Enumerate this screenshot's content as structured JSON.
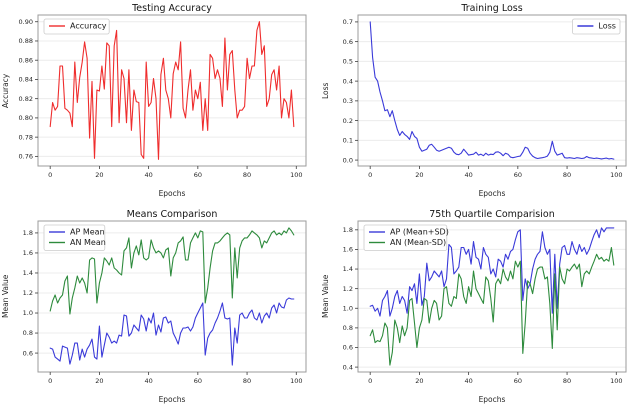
{
  "page": {
    "background": "#ffffff"
  },
  "colors": {
    "red": "#ef2d2d",
    "blue": "#3a3ad9",
    "green": "#2e8b3d",
    "grid": "#ececec",
    "spine": "#9b9b9b",
    "tick": "#3a3a3a",
    "text": "#262626",
    "legend_border": "#cccccc",
    "legend_text": "#1a1a1a"
  },
  "chart_data": [
    {
      "type": "line",
      "title": "Testing Accuracy",
      "xlabel": "Epochs",
      "ylabel": "Accuracy",
      "xlim": [
        -4.95,
        103.95
      ],
      "ylim": [
        0.75,
        0.907
      ],
      "xticks": {
        "values": [
          0,
          20,
          40,
          60,
          80,
          100
        ],
        "labels": [
          "0",
          "20",
          "40",
          "60",
          "80",
          "100"
        ]
      },
      "yticks": {
        "values": [
          0.76,
          0.78,
          0.8,
          0.82,
          0.84,
          0.86,
          0.88,
          0.9
        ],
        "labels": [
          "0.76",
          "0.78",
          "0.80",
          "0.82",
          "0.84",
          "0.86",
          "0.88",
          "0.90"
        ]
      },
      "grid": "horizontal",
      "legend_pos": "upper left",
      "series": [
        {
          "name": "Accuracy",
          "color": "red",
          "values": [
            0.791,
            0.816,
            0.808,
            0.812,
            0.854,
            0.854,
            0.81,
            0.808,
            0.805,
            0.791,
            0.858,
            0.816,
            0.842,
            0.858,
            0.879,
            0.862,
            0.779,
            0.838,
            0.758,
            0.829,
            0.828,
            0.854,
            0.83,
            0.878,
            0.875,
            0.791,
            0.875,
            0.891,
            0.795,
            0.85,
            0.841,
            0.795,
            0.85,
            0.787,
            0.829,
            0.817,
            0.816,
            0.762,
            0.758,
            0.858,
            0.812,
            0.816,
            0.841,
            0.82,
            0.757,
            0.845,
            0.862,
            0.829,
            0.82,
            0.8,
            0.846,
            0.858,
            0.85,
            0.879,
            0.81,
            0.8,
            0.829,
            0.85,
            0.808,
            0.829,
            0.82,
            0.837,
            0.787,
            0.82,
            0.787,
            0.866,
            0.862,
            0.841,
            0.85,
            0.841,
            0.812,
            0.883,
            0.829,
            0.866,
            0.87,
            0.829,
            0.8,
            0.808,
            0.808,
            0.812,
            0.862,
            0.841,
            0.854,
            0.854,
            0.891,
            0.9,
            0.866,
            0.875,
            0.812,
            0.82,
            0.845,
            0.85,
            0.829,
            0.854,
            0.8,
            0.82,
            0.816,
            0.8,
            0.829,
            0.791
          ]
        }
      ]
    },
    {
      "type": "line",
      "title": "Training Loss",
      "xlabel": "Epochs",
      "ylabel": "Loss",
      "xlim": [
        -4.95,
        103.95
      ],
      "ylim": [
        -0.03,
        0.735
      ],
      "xticks": {
        "values": [
          0,
          20,
          40,
          60,
          80,
          100
        ],
        "labels": [
          "0",
          "20",
          "40",
          "60",
          "80",
          "100"
        ]
      },
      "yticks": {
        "values": [
          0.0,
          0.1,
          0.2,
          0.3,
          0.4,
          0.5,
          0.6,
          0.7
        ],
        "labels": [
          "0.0",
          "0.1",
          "0.2",
          "0.3",
          "0.4",
          "0.5",
          "0.6",
          "0.7"
        ]
      },
      "grid": "horizontal",
      "legend_pos": "upper right",
      "series": [
        {
          "name": "Loss",
          "color": "blue",
          "values": [
            0.7,
            0.52,
            0.42,
            0.4,
            0.345,
            0.3,
            0.25,
            0.255,
            0.22,
            0.25,
            0.2,
            0.155,
            0.125,
            0.145,
            0.13,
            0.12,
            0.105,
            0.145,
            0.12,
            0.11,
            0.065,
            0.045,
            0.05,
            0.055,
            0.075,
            0.08,
            0.065,
            0.05,
            0.045,
            0.05,
            0.055,
            0.06,
            0.065,
            0.06,
            0.04,
            0.03,
            0.027,
            0.035,
            0.055,
            0.04,
            0.025,
            0.028,
            0.03,
            0.04,
            0.025,
            0.03,
            0.022,
            0.035,
            0.025,
            0.03,
            0.028,
            0.04,
            0.042,
            0.035,
            0.022,
            0.035,
            0.03,
            0.015,
            0.012,
            0.015,
            0.018,
            0.02,
            0.04,
            0.065,
            0.06,
            0.035,
            0.02,
            0.012,
            0.008,
            0.01,
            0.012,
            0.015,
            0.02,
            0.04,
            0.095,
            0.045,
            0.025,
            0.03,
            0.035,
            0.012,
            0.01,
            0.012,
            0.01,
            0.008,
            0.012,
            0.01,
            0.008,
            0.01,
            0.018,
            0.012,
            0.01,
            0.008,
            0.01,
            0.008,
            0.006,
            0.008,
            0.01,
            0.006,
            0.008,
            0.005
          ]
        }
      ]
    },
    {
      "type": "line",
      "title": "Means Comparison",
      "xlabel": "Epochs",
      "ylabel": "Mean Value",
      "xlim": [
        -4.95,
        103.95
      ],
      "ylim": [
        0.411,
        1.919
      ],
      "xticks": {
        "values": [
          0,
          20,
          40,
          60,
          80,
          100
        ],
        "labels": [
          "0",
          "20",
          "40",
          "60",
          "80",
          "100"
        ]
      },
      "yticks": {
        "values": [
          0.6,
          0.8,
          1.0,
          1.2,
          1.4,
          1.6,
          1.8
        ],
        "labels": [
          "0.6",
          "0.8",
          "1.0",
          "1.2",
          "1.4",
          "1.6",
          "1.8"
        ]
      },
      "grid": "horizontal",
      "legend_pos": "upper left",
      "series": [
        {
          "name": "AP Mean",
          "color": "blue",
          "values": [
            0.65,
            0.64,
            0.56,
            0.54,
            0.52,
            0.67,
            0.66,
            0.65,
            0.49,
            0.58,
            0.7,
            0.7,
            0.53,
            0.64,
            0.56,
            0.64,
            0.68,
            0.74,
            0.56,
            0.54,
            0.87,
            0.56,
            0.68,
            0.8,
            0.76,
            0.7,
            0.72,
            0.7,
            0.78,
            0.77,
            0.98,
            0.97,
            0.77,
            0.8,
            0.88,
            0.85,
            0.82,
            0.98,
            0.94,
            0.82,
            0.95,
            0.9,
            1.0,
            0.78,
            0.88,
            0.81,
            0.95,
            0.96,
            0.9,
            0.92,
            0.8,
            0.75,
            0.69,
            0.8,
            0.85,
            0.85,
            0.86,
            0.82,
            0.86,
            0.95,
            1.0,
            1.05,
            1.1,
            0.58,
            0.75,
            0.8,
            0.83,
            0.9,
            0.95,
            1.02,
            1.1,
            0.95,
            0.94,
            0.95,
            0.48,
            0.85,
            0.7,
            0.98,
            1.0,
            0.95,
            0.95,
            1.0,
            1.03,
            0.95,
            0.93,
            1.0,
            0.9,
            0.97,
            1.0,
            0.95,
            1.05,
            1.08,
            1.0,
            1.1,
            1.06,
            1.05,
            1.13,
            1.15,
            1.14,
            1.14
          ]
        },
        {
          "name": "AN Mean",
          "color": "green",
          "values": [
            1.02,
            1.12,
            1.18,
            1.1,
            1.15,
            1.18,
            1.32,
            1.37,
            0.99,
            1.15,
            1.25,
            1.37,
            1.3,
            1.35,
            1.3,
            1.2,
            1.53,
            1.55,
            1.54,
            1.1,
            1.3,
            1.4,
            1.55,
            1.52,
            1.48,
            1.55,
            1.45,
            1.43,
            1.4,
            1.38,
            1.62,
            1.65,
            1.75,
            1.45,
            1.6,
            1.67,
            1.58,
            1.73,
            1.55,
            1.53,
            1.55,
            1.73,
            1.65,
            1.6,
            1.62,
            1.6,
            1.55,
            1.63,
            1.65,
            1.37,
            1.55,
            1.6,
            1.7,
            1.72,
            1.76,
            1.53,
            1.53,
            1.7,
            1.75,
            1.8,
            1.75,
            1.82,
            1.81,
            1.1,
            1.25,
            1.45,
            1.62,
            1.7,
            1.7,
            1.72,
            1.75,
            1.78,
            1.8,
            1.78,
            1.15,
            1.65,
            1.35,
            1.65,
            1.72,
            1.75,
            1.75,
            1.78,
            1.82,
            1.8,
            1.78,
            1.75,
            1.65,
            1.72,
            1.7,
            1.75,
            1.8,
            1.82,
            1.78,
            1.8,
            1.78,
            1.82,
            1.8,
            1.85,
            1.82,
            1.78
          ]
        }
      ]
    },
    {
      "type": "line",
      "title": "75th Quartile Comparision",
      "xlabel": "Epochs",
      "ylabel": "Mean Value",
      "xlim": [
        -4.95,
        103.95
      ],
      "ylim": [
        0.35,
        1.89
      ],
      "xticks": {
        "values": [
          0,
          20,
          40,
          60,
          80,
          100
        ],
        "labels": [
          "0",
          "20",
          "40",
          "60",
          "80",
          "100"
        ]
      },
      "yticks": {
        "values": [
          0.4,
          0.6,
          0.8,
          1.0,
          1.2,
          1.4,
          1.6,
          1.8
        ],
        "labels": [
          "0.4",
          "0.6",
          "0.8",
          "1.0",
          "1.2",
          "1.4",
          "1.6",
          "1.8"
        ]
      },
      "grid": "horizontal",
      "legend_pos": "upper left",
      "series": [
        {
          "name": "AP (Mean+SD)",
          "color": "blue",
          "values": [
            1.02,
            1.03,
            0.97,
            1.0,
            0.92,
            1.08,
            1.12,
            1.18,
            0.92,
            1.0,
            1.12,
            1.18,
            1.05,
            1.12,
            1.08,
            0.95,
            1.22,
            1.18,
            1.25,
            1.05,
            1.35,
            1.03,
            1.12,
            1.46,
            1.28,
            1.32,
            1.38,
            1.35,
            1.32,
            1.38,
            1.22,
            1.3,
            1.65,
            1.62,
            1.35,
            1.38,
            1.42,
            1.62,
            1.62,
            1.55,
            1.6,
            1.45,
            1.68,
            1.52,
            1.5,
            1.4,
            1.62,
            1.55,
            1.52,
            1.35,
            1.4,
            1.32,
            1.5,
            1.48,
            1.42,
            1.55,
            1.5,
            1.58,
            1.6,
            1.7,
            1.78,
            1.8,
            1.08,
            1.3,
            1.2,
            1.25,
            1.4,
            1.5,
            1.55,
            1.58,
            1.78,
            1.62,
            1.55,
            1.6,
            0.95,
            1.55,
            1.0,
            1.45,
            1.62,
            1.64,
            1.55,
            1.55,
            1.68,
            1.6,
            1.55,
            1.65,
            1.58,
            1.62,
            1.55,
            1.6,
            1.68,
            1.75,
            1.8,
            1.72,
            1.82,
            1.78,
            1.82,
            1.82,
            1.82,
            1.82
          ]
        },
        {
          "name": "AN (Mean-SD)",
          "color": "green",
          "values": [
            0.72,
            0.78,
            0.65,
            0.67,
            0.66,
            0.72,
            0.85,
            0.8,
            0.42,
            0.55,
            0.88,
            0.8,
            0.65,
            0.82,
            0.72,
            0.8,
            1.08,
            1.1,
            0.85,
            0.6,
            0.8,
            0.88,
            1.1,
            1.08,
            0.85,
            1.0,
            1.08,
            1.05,
            0.88,
            0.92,
            1.2,
            1.22,
            1.05,
            1.02,
            1.12,
            1.1,
            1.35,
            1.3,
            1.12,
            1.05,
            1.22,
            1.12,
            1.38,
            1.2,
            1.15,
            1.1,
            1.05,
            1.32,
            1.28,
            1.1,
            0.86,
            1.25,
            1.3,
            1.25,
            1.4,
            1.32,
            1.28,
            1.38,
            1.3,
            1.48,
            1.42,
            1.48,
            0.54,
            0.85,
            1.28,
            1.25,
            1.15,
            1.3,
            1.4,
            1.42,
            1.42,
            1.3,
            1.32,
            1.05,
            0.59,
            1.35,
            0.78,
            1.42,
            1.3,
            1.25,
            1.4,
            1.38,
            1.42,
            1.45,
            1.4,
            1.45,
            1.22,
            1.35,
            1.38,
            1.35,
            1.42,
            1.48,
            1.55,
            1.5,
            1.52,
            1.48,
            1.5,
            1.48,
            1.62,
            1.44
          ]
        }
      ]
    }
  ]
}
